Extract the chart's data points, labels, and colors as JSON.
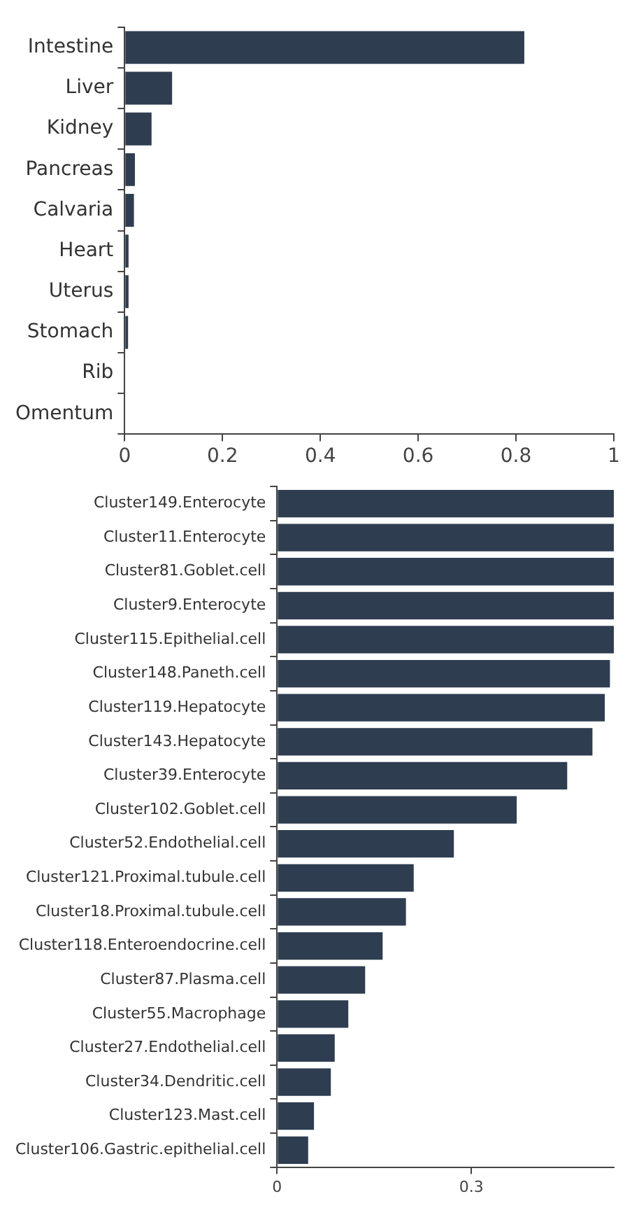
{
  "chart_data": [
    {
      "type": "bar",
      "orientation": "horizontal",
      "categories": [
        "Intestine",
        "Liver",
        "Kidney",
        "Pancreas",
        "Calvaria",
        "Heart",
        "Uterus",
        "Stomach",
        "Rib",
        "Omentum"
      ],
      "values": [
        0.817,
        0.097,
        0.055,
        0.021,
        0.019,
        0.008,
        0.008,
        0.007,
        null,
        null
      ],
      "color": "#2e3d50",
      "xlim": [
        0,
        1
      ],
      "xticks": [
        0,
        0.2,
        0.4,
        0.6,
        0.8,
        1
      ],
      "grid": false,
      "legend": false
    },
    {
      "type": "bar",
      "orientation": "horizontal",
      "categories": [
        "Cluster149.Enterocyte",
        "Cluster11.Enterocyte",
        "Cluster81.Goblet.cell",
        "Cluster9.Enterocyte",
        "Cluster115.Epithelial.cell",
        "Cluster148.Paneth.cell",
        "Cluster119.Hepatocyte",
        "Cluster143.Hepatocyte",
        "Cluster39.Enterocyte",
        "Cluster102.Goblet.cell",
        "Cluster52.Endothelial.cell",
        "Cluster121.Proximal.tubule.cell",
        "Cluster18.Proximal.tubule.cell",
        "Cluster118.Enteroendocrine.cell",
        "Cluster87.Plasma.cell",
        "Cluster55.Macrophage",
        "Cluster27.Endothelial.cell",
        "Cluster34.Dendritic.cell",
        "Cluster123.Mast.cell",
        "Cluster106.Gastric.epithelial.cell"
      ],
      "values": [
        0.52,
        0.52,
        0.52,
        0.52,
        0.52,
        0.514,
        0.506,
        0.487,
        0.448,
        0.37,
        0.273,
        0.211,
        0.199,
        0.163,
        0.136,
        0.11,
        0.089,
        0.083,
        0.057,
        0.048
      ],
      "color": "#2e3d50",
      "xlim": [
        0,
        0.52
      ],
      "xticks": [
        0,
        0.3
      ],
      "grid": false,
      "legend": false
    }
  ]
}
